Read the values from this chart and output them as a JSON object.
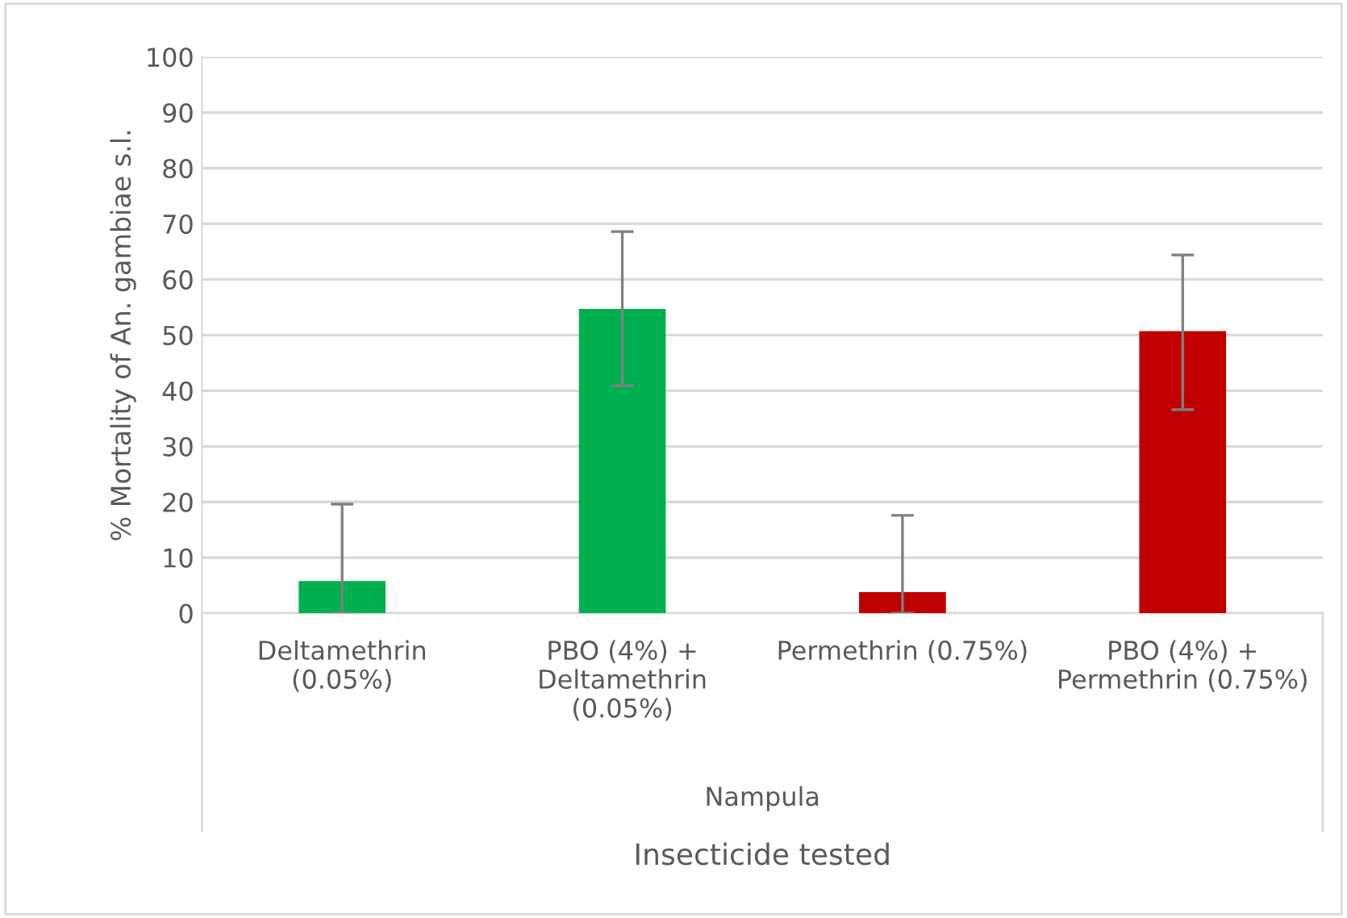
{
  "chart_data": {
    "type": "bar",
    "xlabel": "Insecticide tested",
    "ylabel": "% Mortality of An. gambiae s.l.",
    "categories": [
      "Deltamethrin\n(0.05%)",
      "PBO (4%) +\nDeltamethrin\n(0.05%)",
      "Permethrin (0.75%)",
      "PBO (4%) +\nPermethrin (0.75%)"
    ],
    "values": [
      5.8,
      54.7,
      3.8,
      50.7
    ],
    "colors": [
      "#00b050",
      "#00b050",
      "#c00000",
      "#c00000"
    ],
    "errors": [
      [
        0,
        19.6
      ],
      [
        40.9,
        68.6
      ],
      [
        0,
        17.6
      ],
      [
        36.6,
        64.4
      ]
    ],
    "ylim": [
      0,
      100
    ],
    "yticks": [
      0,
      10,
      20,
      30,
      40,
      50,
      60,
      70,
      80,
      90,
      100
    ],
    "grid": "y",
    "annotations": [
      "Nampula"
    ]
  }
}
